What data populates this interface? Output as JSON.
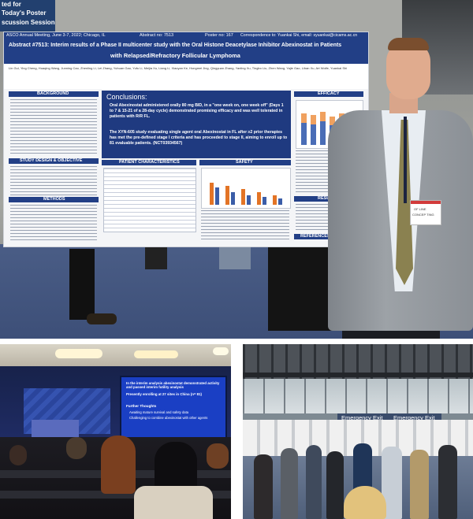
{
  "photo_top": {
    "corner_sign": {
      "line1": "ted for",
      "line2": "Today's Poster",
      "line3": "scussion Session"
    },
    "poster": {
      "header_bar": {
        "meeting": "ASCO Annual Meeting, June 3-7, 2022; Chicago, IL",
        "abstract": "Abstract no: 7513",
        "poster_no": "Poster no: 167",
        "correspondence": "Correspondence to: Yuankai Shi, email: syuankai@cicams.ac.cn"
      },
      "title_line1": "Abstract #7513: Interim results of a Phase II multicenter study with the Oral Histone Deacetylase Inhibitor Abexinostat in Patients",
      "title_line2": "with Relapsed/Refractory Follicular Lymphoma",
      "authors": "Lin Gui, Ying Cheng, Huaqing Wang, Junning Cao, Zhenling Li, Lei Zhang, Yuhuan Gao, Yufu Li, Meijia Xu, Liang Li, Xiaoyan Ke, Hongmei Jing, Qingyuan Zhang, Yanling Xu, Tingbo Liu, Zhen Wang, Yajie Gao, Lihan Xu, Art Wolfe, Yuankai Shi",
      "sections": {
        "background": "BACKGROUND",
        "study_design": "STUDY DESIGN & OBJECTIVE",
        "methods": "METHODS",
        "patient_characteristics": "PATIENT CHARACTERISTICS",
        "safety": "SAFETY",
        "efficacy": "EFFICACY",
        "results": "RESULTS",
        "references": "REFERENCES & ACKNO"
      },
      "conclusions_heading": "Conclusions:",
      "conclusion_1": "Oral Abexinostat administered orally 80 mg BID, in a \"one week on, one week off\" (Days 1 to 7 & 15-21 of a 28-day cycle) demonstrated promising efficacy and was well tolerated in patients with R/R FL.",
      "conclusion_2": "The XYN-605 study evaluating single agent oral Abexinostat in FL after ≥2 prior therapies has met the pre-defined stage I criteria and has proceeded to stage II, aiming to enroll up to 81 evaluable patients. (NCT03934567)"
    },
    "badge": {
      "line1": "OF LINE",
      "line2": "CONCEP TING"
    }
  },
  "photo_bottom_left": {
    "slide": {
      "bullet_1": "In the interim analysis abexinostat demonstrated activity and passed interim futility analysis",
      "bullet_2": "Presently enrolling at 27 sites in China (n= 81)",
      "further_heading": "Further Thoughts",
      "further_1": "Awaiting mature survival and safety data",
      "further_2": "Challenging to combine abexinostat with other agents"
    }
  },
  "photo_bottom_right": {
    "exit_sign_left": "Emergency Exit",
    "exit_sign_right": "Emergency Exit"
  },
  "colors": {
    "poster_navy": "#1f3a80",
    "poster_header": "#213f86",
    "slide_blue": "#1a3fc4",
    "jacket_gray": "#8f9499"
  }
}
